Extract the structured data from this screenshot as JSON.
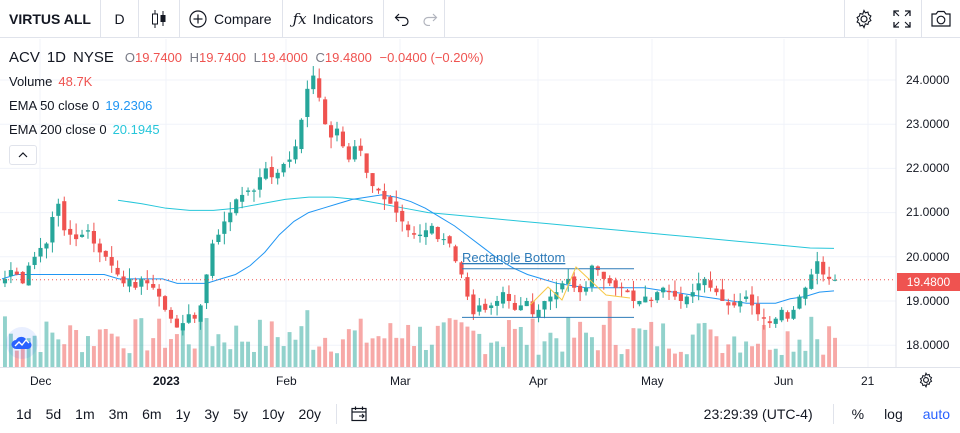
{
  "toolbar": {
    "symbol": "VIRTUS ALL",
    "interval": "D",
    "chart_type_icon": "candles-icon",
    "compare_label": "Compare",
    "indicators_label": "Indicators",
    "undo_icon": "undo-icon",
    "redo_icon": "redo-icon",
    "settings_icon": "gear-icon",
    "fullscreen_icon": "fullscreen-icon",
    "snapshot_icon": "camera-icon"
  },
  "legend": {
    "ticker": "ACV",
    "interval": "1D",
    "exchange": "NYSE",
    "ohlc": {
      "o_key": "O",
      "o": "19.7400",
      "h_key": "H",
      "h": "19.7400",
      "l_key": "L",
      "l": "19.4000",
      "c_key": "C",
      "c": "19.4800",
      "change": "−0.0400 (−0.20%)"
    },
    "volume_label": "Volume",
    "volume_value": "48.7K",
    "ema50_label": "EMA 50 close 0",
    "ema50_value": "19.2306",
    "ema200_label": "EMA 200 close 0",
    "ema200_value": "20.1945"
  },
  "price_axis": {
    "ticks": [
      "24.0000",
      "23.0000",
      "22.0000",
      "21.0000",
      "20.0000",
      "19.0000",
      "18.0000"
    ],
    "last_price": "19.4800"
  },
  "time_axis": {
    "labels": [
      {
        "text": "Dec",
        "bold": false
      },
      {
        "text": "2023",
        "bold": true
      },
      {
        "text": "Feb",
        "bold": false
      },
      {
        "text": "Mar",
        "bold": false
      },
      {
        "text": "Apr",
        "bold": false
      },
      {
        "text": "May",
        "bold": false
      },
      {
        "text": "Jun",
        "bold": false
      },
      {
        "text": "21",
        "bold": false
      }
    ]
  },
  "bottom": {
    "ranges": [
      "1d",
      "5d",
      "1m",
      "3m",
      "6m",
      "1y",
      "3y",
      "5y",
      "10y",
      "20y"
    ],
    "time": "23:29:39 (UTC-4)",
    "percent": "%",
    "log": "log",
    "auto": "auto"
  },
  "colors": {
    "up": "#26a69a",
    "down": "#ef5350",
    "ema50": "#2196f3",
    "ema200": "#26c6da",
    "pattern": "#2962ff",
    "zigzag": "#f7c948"
  },
  "chart_data": {
    "type": "candlestick",
    "y_range": [
      17.5,
      24.6
    ],
    "grid": true,
    "pattern_label": "Rectangle Bottom",
    "pattern_top": 19.73,
    "pattern_bottom": 18.63,
    "closes": [
      19.5,
      19.7,
      19.6,
      19.4,
      19.8,
      20.0,
      20.2,
      20.3,
      20.9,
      21.2,
      20.6,
      20.5,
      20.4,
      20.5,
      20.6,
      20.3,
      20.1,
      20.0,
      19.8,
      19.6,
      19.4,
      19.5,
      19.3,
      19.5,
      19.4,
      19.3,
      19.1,
      18.8,
      18.6,
      18.4,
      18.5,
      18.7,
      18.6,
      18.9,
      19.6,
      20.3,
      20.5,
      20.8,
      21.0,
      21.3,
      21.4,
      21.5,
      21.5,
      21.8,
      22.0,
      21.8,
      21.9,
      22.1,
      22.2,
      22.5,
      23.1,
      23.8,
      24.1,
      23.6,
      23.0,
      22.7,
      22.9,
      22.5,
      22.2,
      22.5,
      22.4,
      21.9,
      21.6,
      21.5,
      21.3,
      21.2,
      21.0,
      20.8,
      20.6,
      20.5,
      20.5,
      20.6,
      20.7,
      20.4,
      20.4,
      20.3,
      19.9,
      19.6,
      19.1,
      18.7,
      18.9,
      18.8,
      18.9,
      19.0,
      19.2,
      19.0,
      18.8,
      18.9,
      19.0,
      18.7,
      18.8,
      19.0,
      19.1,
      19.2,
      19.4,
      19.5,
      19.3,
      19.2,
      19.3,
      19.8,
      19.7,
      19.5,
      19.4,
      19.3,
      19.3,
      19.2,
      19.0,
      19.0,
      19.1,
      19.0,
      19.2,
      19.3,
      19.2,
      19.1,
      19.0,
      19.1,
      19.2,
      19.4,
      19.5,
      19.3,
      19.2,
      19.0,
      18.9,
      18.9,
      19.0,
      19.1,
      18.9,
      18.7,
      18.6,
      18.5,
      18.6,
      18.8,
      18.6,
      18.8,
      19.1,
      19.3,
      19.6,
      19.9,
      19.6,
      19.5,
      19.48
    ],
    "volume_max_label": "",
    "ema50": [
      19.5,
      19.6,
      19.6,
      19.6,
      19.6,
      19.6,
      19.6,
      19.6,
      19.5,
      19.5,
      19.5,
      19.5,
      19.4,
      19.4,
      19.4,
      19.5,
      19.6,
      19.8,
      20.1,
      20.5,
      20.8,
      21.0,
      21.1,
      21.2,
      21.3,
      21.35,
      21.4,
      21.35,
      21.25,
      21.1,
      20.9,
      20.7,
      20.45,
      20.2,
      19.95,
      19.75,
      19.6,
      19.5,
      19.4,
      19.35,
      19.3,
      19.3,
      19.3,
      19.3,
      19.3,
      19.25,
      19.2,
      19.15,
      19.1,
      19.05,
      19.0,
      18.95,
      18.95,
      18.95,
      19.05,
      19.1,
      19.2,
      19.23
    ],
    "ema200": [
      21.28,
      21.2,
      21.1,
      21.05,
      21.05,
      21.1,
      21.2,
      21.3,
      21.35,
      21.35,
      21.3,
      21.2,
      21.1,
      21.0,
      20.95,
      20.9,
      20.85,
      20.8,
      20.75,
      20.7,
      20.65,
      20.6,
      20.55,
      20.5,
      20.45,
      20.4,
      20.35,
      20.3,
      20.25,
      20.2,
      20.19
    ]
  }
}
